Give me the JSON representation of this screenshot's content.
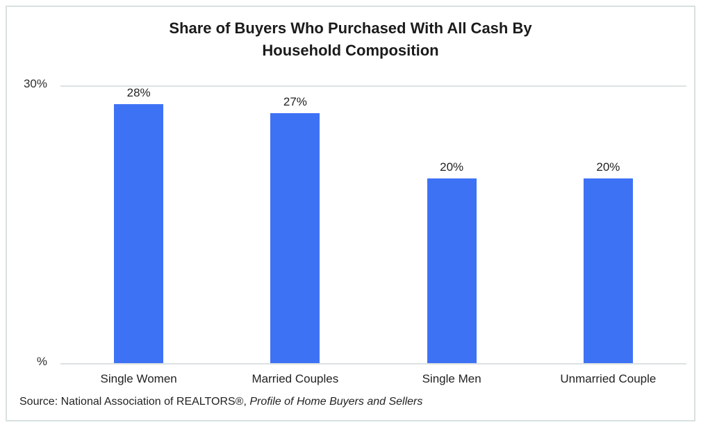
{
  "chart_data": {
    "type": "bar",
    "title": "Share of Buyers Who Purchased With All Cash By Household Composition",
    "title_lines": [
      "Share of Buyers Who Purchased With All Cash By",
      "Household Composition"
    ],
    "categories": [
      "Single Women",
      "Married Couples",
      "Single Men",
      "Unmarried Couple"
    ],
    "values": [
      28,
      27,
      20,
      20
    ],
    "value_labels": [
      "28%",
      "27%",
      "20%",
      "20%"
    ],
    "xlabel": "",
    "ylabel": "",
    "ylim": [
      0,
      30
    ],
    "yticks": [
      {
        "value": 30,
        "label": "30%"
      },
      {
        "value": 0,
        "label": "%"
      }
    ],
    "grid": "single horizontal gridline at 30% plus baseline at 0%",
    "legend": "none",
    "source_prefix": "Source: National Association of REALTORS®, ",
    "source_italic": "Profile of Home Buyers and Sellers"
  },
  "colors": {
    "bar": "#3e72f5",
    "gridline": "#dbe2e2",
    "frame_border": "#d9e0e0",
    "title_text": "#1b1b1b",
    "label_text": "#222222",
    "background": "#ffffff"
  }
}
